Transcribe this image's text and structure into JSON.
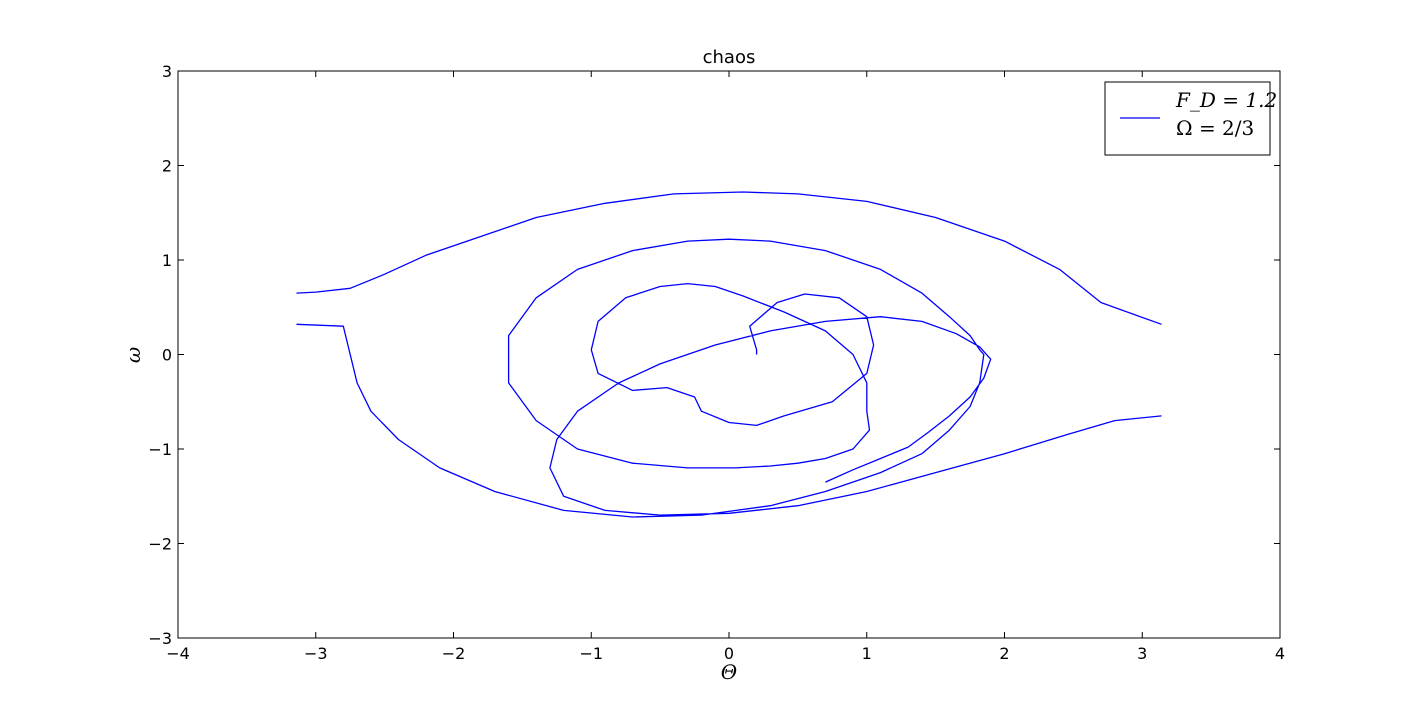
{
  "chart_data": {
    "type": "line",
    "title": "chaos",
    "xlabel": "Θ",
    "ylabel": "ω",
    "xlim": [
      -4,
      4
    ],
    "ylim": [
      -3,
      3
    ],
    "xticks": [
      -4,
      -3,
      -2,
      -1,
      0,
      1,
      2,
      3,
      4
    ],
    "yticks": [
      -3,
      -2,
      -1,
      0,
      1,
      2,
      3
    ],
    "xtick_labels": [
      "−4",
      "−3",
      "−2",
      "−1",
      "0",
      "1",
      "2",
      "3",
      "4"
    ],
    "ytick_labels": [
      "−3",
      "−2",
      "−1",
      "0",
      "1",
      "2",
      "3"
    ],
    "grid": false,
    "legend": {
      "placement": "top-right",
      "entries": [
        {
          "line1": "F_D = 1.2",
          "line2": "Ω = 2/3",
          "color": "#0000ff"
        }
      ]
    },
    "series": [
      {
        "color": "#0000ff",
        "x": [
          0.2,
          0.2,
          0.15,
          0.35,
          0.55,
          0.8,
          1.0,
          1.05,
          1.0,
          0.75,
          0.4,
          0.2,
          0.0,
          -0.2,
          -0.25,
          -0.45,
          -0.7,
          -0.95,
          -1.0,
          -0.95,
          -0.75,
          -0.5,
          -0.3,
          -0.1,
          0.1,
          0.4,
          0.7,
          0.9,
          1.0,
          1.0,
          1.02,
          0.9,
          0.7,
          0.5,
          0.3,
          0.05,
          -0.3,
          -0.7,
          -1.1,
          -1.4,
          -1.6,
          -1.6,
          -1.4,
          -1.1,
          -0.7,
          -0.3,
          0.0,
          0.3,
          0.7,
          1.1,
          1.4,
          1.6,
          1.75,
          1.82,
          1.85,
          1.82,
          1.75,
          1.6,
          1.4,
          1.1,
          0.7,
          0.3,
          -0.2,
          -0.7,
          -1.2,
          -1.7,
          -2.1,
          -2.4,
          -2.6,
          -2.7,
          -2.75,
          -2.8,
          -3.14,
          3.14,
          2.7,
          2.4,
          2.0,
          1.5,
          1.0,
          0.5,
          0.1,
          -0.4,
          -0.9,
          -1.4,
          -1.8,
          -2.2,
          -2.5,
          -2.75,
          -3.0,
          -3.14,
          3.14,
          2.8,
          2.45,
          2.0,
          1.5,
          1.0,
          0.5,
          0.0,
          -0.5,
          -0.9,
          -1.2,
          -1.3,
          -1.25,
          -1.1,
          -0.8,
          -0.5,
          -0.1,
          0.3,
          0.7,
          1.1,
          1.4,
          1.65,
          1.82,
          1.9,
          1.85,
          1.75,
          1.6,
          1.45,
          1.3,
          1.1,
          0.9,
          0.7
        ],
        "y": [
          0.0,
          0.05,
          0.3,
          0.55,
          0.64,
          0.6,
          0.4,
          0.1,
          -0.2,
          -0.5,
          -0.65,
          -0.75,
          -0.72,
          -0.6,
          -0.45,
          -0.35,
          -0.38,
          -0.2,
          0.05,
          0.35,
          0.6,
          0.72,
          0.75,
          0.72,
          0.62,
          0.45,
          0.25,
          0.0,
          -0.3,
          -0.6,
          -0.8,
          -1.0,
          -1.1,
          -1.15,
          -1.18,
          -1.2,
          -1.2,
          -1.15,
          -1.0,
          -0.7,
          -0.3,
          0.2,
          0.6,
          0.9,
          1.1,
          1.2,
          1.22,
          1.2,
          1.1,
          0.9,
          0.65,
          0.4,
          0.2,
          0.05,
          0.0,
          -0.3,
          -0.55,
          -0.8,
          -1.05,
          -1.25,
          -1.45,
          -1.6,
          -1.7,
          -1.72,
          -1.65,
          -1.45,
          -1.2,
          -0.9,
          -0.6,
          -0.3,
          0.0,
          0.3,
          0.32,
          0.32,
          0.55,
          0.9,
          1.2,
          1.45,
          1.62,
          1.7,
          1.72,
          1.7,
          1.6,
          1.45,
          1.25,
          1.05,
          0.85,
          0.7,
          0.66,
          0.65,
          -0.65,
          -0.7,
          -0.85,
          -1.05,
          -1.25,
          -1.45,
          -1.6,
          -1.68,
          -1.7,
          -1.65,
          -1.5,
          -1.2,
          -0.9,
          -0.6,
          -0.3,
          -0.1,
          0.1,
          0.25,
          0.35,
          0.4,
          0.35,
          0.22,
          0.08,
          -0.05,
          -0.25,
          -0.45,
          -0.65,
          -0.82,
          -0.98,
          -1.1,
          -1.22,
          -1.35
        ]
      }
    ]
  }
}
